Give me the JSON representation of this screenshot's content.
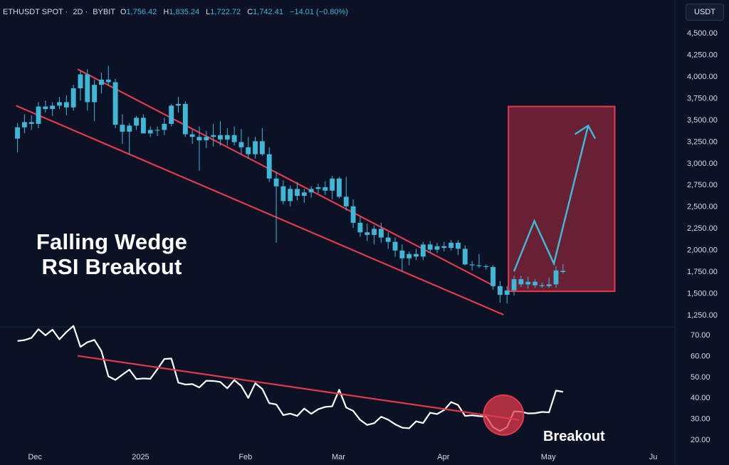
{
  "header": {
    "symbol": "ETHUSDT SPOT",
    "interval": "2D",
    "exchange": "BYBIT",
    "ohlc": {
      "o_label": "O",
      "o_value": "1,756.42",
      "h_label": "H",
      "h_value": "1,835.24",
      "l_label": "L",
      "l_value": "1,722.72",
      "c_label": "C",
      "c_value": "1,742.41",
      "change": "−14.01 (−0.80%)"
    }
  },
  "currency_button": "USDT",
  "annotations": {
    "title_line1": "Falling Wedge",
    "title_line2": "RSI Breakout",
    "breakout": "Breakout"
  },
  "colors": {
    "background": "#0b1226",
    "candle_up": "#3fb7d6",
    "candle_down": "#3fb7d6",
    "trendline": "#e2394b",
    "target_box_fill": "#7a2338",
    "target_box_stroke": "#e2394b",
    "projection": "#3fb7d6",
    "rsi_line": "#ffffff",
    "axis_text": "#d6dae3"
  },
  "chart_data": [
    {
      "type": "candlestick",
      "title": "",
      "ylim": [
        1150,
        4620
      ],
      "y_ticks": [
        "4,500.00",
        "4,250.00",
        "4,000.00",
        "3,750.00",
        "3,500.00",
        "3,250.00",
        "3,000.00",
        "2,750.00",
        "2,500.00",
        "2,250.00",
        "2,000.00",
        "1,750.00",
        "1,500.00",
        "1,250.00"
      ],
      "y_tick_values": [
        4500,
        4250,
        4000,
        3750,
        3500,
        3250,
        3000,
        2750,
        2500,
        2250,
        2000,
        1750,
        1500,
        1250
      ],
      "x_ticks": [
        "Dec",
        "2025",
        "Feb",
        "Mar",
        "Apr",
        "May",
        "Ju"
      ],
      "x_tick_positions": [
        2.5,
        17.6,
        32.6,
        45.9,
        60.9,
        75.9,
        90.9
      ],
      "x_domain": [
        -2.5,
        94.0
      ],
      "candles": [
        {
          "o": 3280,
          "h": 3460,
          "l": 3120,
          "c": 3410
        },
        {
          "o": 3410,
          "h": 3560,
          "l": 3340,
          "c": 3470
        },
        {
          "o": 3470,
          "h": 3550,
          "l": 3380,
          "c": 3450
        },
        {
          "o": 3450,
          "h": 3700,
          "l": 3400,
          "c": 3650
        },
        {
          "o": 3650,
          "h": 3720,
          "l": 3580,
          "c": 3620
        },
        {
          "o": 3620,
          "h": 3700,
          "l": 3540,
          "c": 3660
        },
        {
          "o": 3660,
          "h": 3760,
          "l": 3620,
          "c": 3700
        },
        {
          "o": 3700,
          "h": 3780,
          "l": 3550,
          "c": 3640
        },
        {
          "o": 3640,
          "h": 3900,
          "l": 3600,
          "c": 3860
        },
        {
          "o": 3860,
          "h": 4060,
          "l": 3720,
          "c": 4020
        },
        {
          "o": 4020,
          "h": 4080,
          "l": 3600,
          "c": 3700
        },
        {
          "o": 3700,
          "h": 3960,
          "l": 3480,
          "c": 3900
        },
        {
          "o": 3900,
          "h": 4040,
          "l": 3800,
          "c": 3960
        },
        {
          "o": 3960,
          "h": 4120,
          "l": 3890,
          "c": 3930
        },
        {
          "o": 3930,
          "h": 3970,
          "l": 3400,
          "c": 3440
        },
        {
          "o": 3440,
          "h": 3560,
          "l": 3220,
          "c": 3360
        },
        {
          "o": 3360,
          "h": 3460,
          "l": 3100,
          "c": 3430
        },
        {
          "o": 3430,
          "h": 3540,
          "l": 3380,
          "c": 3520
        },
        {
          "o": 3520,
          "h": 3560,
          "l": 3360,
          "c": 3340
        },
        {
          "o": 3340,
          "h": 3420,
          "l": 3300,
          "c": 3380
        },
        {
          "o": 3380,
          "h": 3420,
          "l": 3310,
          "c": 3380
        },
        {
          "o": 3380,
          "h": 3520,
          "l": 3320,
          "c": 3450
        },
        {
          "o": 3450,
          "h": 3680,
          "l": 3420,
          "c": 3660
        },
        {
          "o": 3660,
          "h": 3760,
          "l": 3580,
          "c": 3680
        },
        {
          "o": 3680,
          "h": 3710,
          "l": 3300,
          "c": 3330
        },
        {
          "o": 3330,
          "h": 3380,
          "l": 3220,
          "c": 3300
        },
        {
          "o": 3300,
          "h": 3420,
          "l": 2910,
          "c": 3260
        },
        {
          "o": 3260,
          "h": 3370,
          "l": 3170,
          "c": 3300
        },
        {
          "o": 3300,
          "h": 3450,
          "l": 3190,
          "c": 3320
        },
        {
          "o": 3320,
          "h": 3480,
          "l": 3200,
          "c": 3270
        },
        {
          "o": 3270,
          "h": 3400,
          "l": 3200,
          "c": 3320
        },
        {
          "o": 3320,
          "h": 3420,
          "l": 3200,
          "c": 3240
        },
        {
          "o": 3240,
          "h": 3390,
          "l": 3100,
          "c": 3180
        },
        {
          "o": 3180,
          "h": 3300,
          "l": 3050,
          "c": 3100
        },
        {
          "o": 3100,
          "h": 3300,
          "l": 3050,
          "c": 3250
        },
        {
          "o": 3250,
          "h": 3400,
          "l": 3080,
          "c": 3100
        },
        {
          "o": 3100,
          "h": 3180,
          "l": 2780,
          "c": 2820
        },
        {
          "o": 2820,
          "h": 2900,
          "l": 2080,
          "c": 2730
        },
        {
          "o": 2730,
          "h": 2800,
          "l": 2520,
          "c": 2560
        },
        {
          "o": 2560,
          "h": 2740,
          "l": 2500,
          "c": 2700
        },
        {
          "o": 2700,
          "h": 2780,
          "l": 2570,
          "c": 2620
        },
        {
          "o": 2620,
          "h": 2700,
          "l": 2540,
          "c": 2660
        },
        {
          "o": 2660,
          "h": 2730,
          "l": 2600,
          "c": 2700
        },
        {
          "o": 2700,
          "h": 2760,
          "l": 2650,
          "c": 2720
        },
        {
          "o": 2720,
          "h": 2790,
          "l": 2630,
          "c": 2680
        },
        {
          "o": 2680,
          "h": 2850,
          "l": 2580,
          "c": 2820
        },
        {
          "o": 2820,
          "h": 2840,
          "l": 2590,
          "c": 2610
        },
        {
          "o": 2610,
          "h": 2840,
          "l": 2450,
          "c": 2500
        },
        {
          "o": 2500,
          "h": 2580,
          "l": 2250,
          "c": 2310
        },
        {
          "o": 2310,
          "h": 2380,
          "l": 2150,
          "c": 2200
        },
        {
          "o": 2200,
          "h": 2300,
          "l": 2100,
          "c": 2170
        },
        {
          "o": 2170,
          "h": 2280,
          "l": 2060,
          "c": 2240
        },
        {
          "o": 2240,
          "h": 2310,
          "l": 2080,
          "c": 2140
        },
        {
          "o": 2140,
          "h": 2200,
          "l": 2010,
          "c": 2090
        },
        {
          "o": 2090,
          "h": 2140,
          "l": 1920,
          "c": 1990
        },
        {
          "o": 1990,
          "h": 2060,
          "l": 1750,
          "c": 1900
        },
        {
          "o": 1900,
          "h": 1980,
          "l": 1820,
          "c": 1950
        },
        {
          "o": 1950,
          "h": 2010,
          "l": 1880,
          "c": 1920
        },
        {
          "o": 1920,
          "h": 2090,
          "l": 1880,
          "c": 2060
        },
        {
          "o": 2060,
          "h": 2100,
          "l": 1960,
          "c": 2000
        },
        {
          "o": 2000,
          "h": 2080,
          "l": 1960,
          "c": 2040
        },
        {
          "o": 2040,
          "h": 2090,
          "l": 1980,
          "c": 2020
        },
        {
          "o": 2020,
          "h": 2110,
          "l": 1990,
          "c": 2080
        },
        {
          "o": 2080,
          "h": 2110,
          "l": 1940,
          "c": 2010
        },
        {
          "o": 2010,
          "h": 2050,
          "l": 1820,
          "c": 1830
        },
        {
          "o": 1830,
          "h": 1870,
          "l": 1760,
          "c": 1820
        },
        {
          "o": 1820,
          "h": 1950,
          "l": 1790,
          "c": 1810
        },
        {
          "o": 1810,
          "h": 1830,
          "l": 1770,
          "c": 1800
        },
        {
          "o": 1800,
          "h": 1820,
          "l": 1540,
          "c": 1580
        },
        {
          "o": 1580,
          "h": 1640,
          "l": 1390,
          "c": 1480
        },
        {
          "o": 1480,
          "h": 1580,
          "l": 1380,
          "c": 1530
        },
        {
          "o": 1530,
          "h": 1700,
          "l": 1470,
          "c": 1660
        },
        {
          "o": 1660,
          "h": 1700,
          "l": 1570,
          "c": 1600
        },
        {
          "o": 1600,
          "h": 1690,
          "l": 1550,
          "c": 1630
        },
        {
          "o": 1630,
          "h": 1660,
          "l": 1560,
          "c": 1590
        },
        {
          "o": 1590,
          "h": 1620,
          "l": 1560,
          "c": 1580
        },
        {
          "o": 1580,
          "h": 1680,
          "l": 1560,
          "c": 1600
        },
        {
          "o": 1600,
          "h": 1810,
          "l": 1560,
          "c": 1760
        },
        {
          "o": 1756.42,
          "h": 1835.24,
          "l": 1722.72,
          "c": 1742.41
        }
      ],
      "wedge_upper": [
        [
          8.6,
          4080
        ],
        [
          68.2,
          1580
        ]
      ],
      "wedge_lower": [
        [
          -0.2,
          3660
        ],
        [
          69.5,
          1250
        ]
      ],
      "target_box": {
        "x1": 70.2,
        "x2": 85.4,
        "y1": 1520,
        "y2": 3650
      },
      "projection_path": [
        [
          71.0,
          1750
        ],
        [
          73.9,
          2330
        ],
        [
          76.7,
          1840
        ],
        [
          81.6,
          3430
        ]
      ],
      "projection_arrowhead": [
        [
          79.7,
          3330
        ],
        [
          81.6,
          3430
        ],
        [
          82.6,
          3280
        ]
      ]
    },
    {
      "type": "line",
      "title": "",
      "ylim": [
        16,
        73
      ],
      "y_ticks": [
        "70.00",
        "60.00",
        "50.00",
        "40.00",
        "30.00",
        "20.00"
      ],
      "y_tick_values": [
        70,
        60,
        50,
        40,
        30,
        20
      ],
      "series": [
        {
          "values": [
            67,
            67.4,
            68.5,
            72.6,
            69.7,
            72.4,
            67.8,
            71.3,
            74.2,
            64.2,
            66.4,
            67.5,
            62.2,
            50.1,
            48.4,
            50.9,
            53.3,
            48.8,
            49.1,
            48.9,
            53.5,
            58.4,
            58.6,
            47.1,
            46.2,
            46.4,
            44.8,
            48,
            47.9,
            47.4,
            44.4,
            48.3,
            45.5,
            39.8,
            46.8,
            44.1,
            37.3,
            36.7,
            31.6,
            32.3,
            31.2,
            34.7,
            32.2,
            34.4,
            35.5,
            35.8,
            43.7,
            35.2,
            33.6,
            29.3,
            26.9,
            27.7,
            30.8,
            29.4,
            27.2,
            25.6,
            25.3,
            28.6,
            27.8,
            32.7,
            32.1,
            34,
            37.8,
            36.4,
            31.2,
            31.5,
            31.1,
            30.9,
            25.8,
            24,
            25.9,
            33.4,
            33.2,
            32.4,
            32.5,
            33.1,
            32.9,
            43.3,
            42.7
          ]
        }
      ],
      "trendline": [
        [
          8.6,
          59.9
        ],
        [
          71.7,
          29.3
        ]
      ],
      "breakout_circle": {
        "cx": 69.5,
        "cy": 31.6
      }
    }
  ]
}
